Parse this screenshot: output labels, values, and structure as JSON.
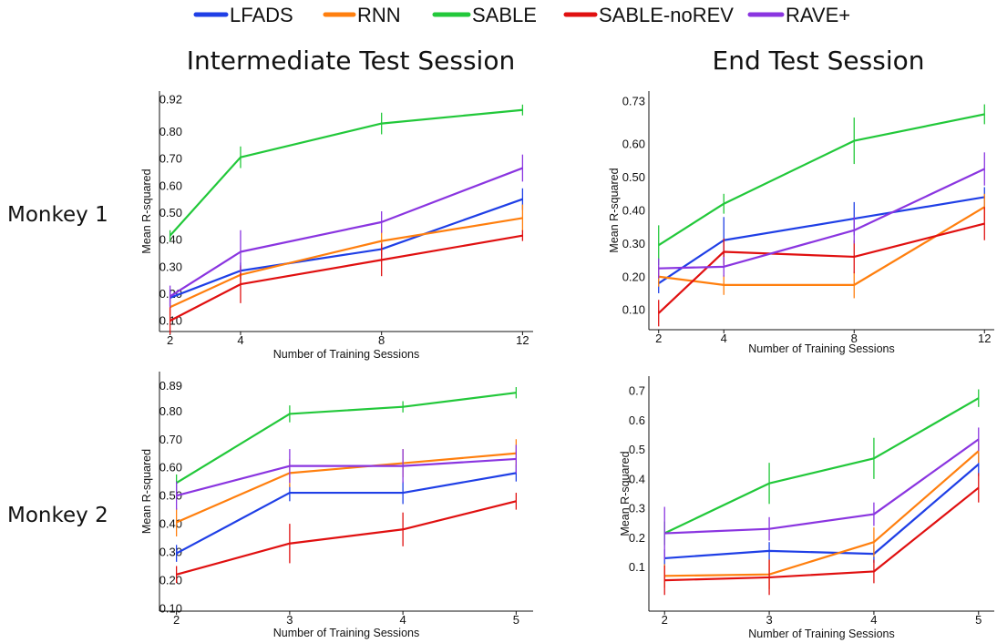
{
  "legend": [
    {
      "name": "LFADS",
      "color": "#1F3FE6"
    },
    {
      "name": "RNN",
      "color": "#FF7F0E"
    },
    {
      "name": "SABLE",
      "color": "#22C83A"
    },
    {
      "name": "SABLE-noREV",
      "color": "#E01010"
    },
    {
      "name": "RAVE+",
      "color": "#8A35E0"
    }
  ],
  "column_titles": [
    "Intermediate Test Session",
    "End Test Session"
  ],
  "row_labels": [
    "Monkey 1",
    "Monkey 2"
  ],
  "chart_data": [
    {
      "type": "line",
      "title": "Intermediate Test Session",
      "row": "Monkey 1",
      "xlabel": "Number of Training Sessions",
      "ylabel": "Mean R-squared",
      "x": [
        2,
        4,
        8,
        12
      ],
      "xlim": [
        1.7,
        12.3
      ],
      "ylim": [
        0.06,
        0.95
      ],
      "yticks": [
        0.1,
        0.2,
        0.3,
        0.4,
        0.5,
        0.6,
        0.7,
        0.8,
        0.92
      ],
      "ytick_labels": [
        "0.10",
        "0.20",
        "0.30",
        "0.40",
        "0.50",
        "0.60",
        "0.70",
        "0.80",
        "0.92"
      ],
      "grid": false,
      "series": [
        {
          "name": "LFADS",
          "values": [
            0.185,
            0.285,
            0.365,
            0.55
          ],
          "err": [
            0.03,
            0.03,
            0.03,
            0.04
          ]
        },
        {
          "name": "RNN",
          "values": [
            0.15,
            0.27,
            0.395,
            0.48
          ],
          "err": [
            0.03,
            0.03,
            0.04,
            0.05
          ]
        },
        {
          "name": "SABLE",
          "values": [
            0.415,
            0.705,
            0.83,
            0.88
          ],
          "err": [
            0.02,
            0.04,
            0.04,
            0.02
          ]
        },
        {
          "name": "SABLE-noREV",
          "values": [
            0.1,
            0.235,
            0.325,
            0.415
          ],
          "err": [
            0.05,
            0.07,
            0.06,
            0.02
          ]
        },
        {
          "name": "RAVE+",
          "values": [
            0.19,
            0.355,
            0.465,
            0.665
          ],
          "err": [
            0.04,
            0.08,
            0.04,
            0.05
          ]
        }
      ]
    },
    {
      "type": "line",
      "title": "End Test Session",
      "row": "Monkey 1",
      "xlabel": "Number of Training Sessions",
      "ylabel": "Mean R-squared",
      "x": [
        2,
        4,
        8,
        12
      ],
      "xlim": [
        1.7,
        12.3
      ],
      "ylim": [
        0.04,
        0.76
      ],
      "yticks": [
        0.1,
        0.2,
        0.3,
        0.4,
        0.5,
        0.6,
        0.73
      ],
      "ytick_labels": [
        "0.10",
        "0.20",
        "0.30",
        "0.40",
        "0.50",
        "0.60",
        "0.73"
      ],
      "grid": false,
      "series": [
        {
          "name": "LFADS",
          "values": [
            0.18,
            0.31,
            0.375,
            0.44
          ],
          "err": [
            0.03,
            0.07,
            0.05,
            0.03
          ]
        },
        {
          "name": "RNN",
          "values": [
            0.2,
            0.175,
            0.175,
            0.41
          ],
          "err": [
            0.03,
            0.03,
            0.04,
            0.04
          ]
        },
        {
          "name": "SABLE",
          "values": [
            0.295,
            0.42,
            0.61,
            0.69
          ],
          "err": [
            0.06,
            0.03,
            0.07,
            0.03
          ]
        },
        {
          "name": "SABLE-noREV",
          "values": [
            0.09,
            0.275,
            0.26,
            0.36
          ],
          "err": [
            0.04,
            0.04,
            0.05,
            0.05
          ]
        },
        {
          "name": "RAVE+",
          "values": [
            0.225,
            0.23,
            0.34,
            0.525
          ],
          "err": [
            0.03,
            0.03,
            0.04,
            0.05
          ]
        }
      ]
    },
    {
      "type": "line",
      "title": "Intermediate Test Session",
      "row": "Monkey 2",
      "xlabel": "Number of Training Sessions",
      "ylabel": "Mean R-squared",
      "x": [
        2,
        3,
        4,
        5
      ],
      "xlim": [
        1.85,
        5.15
      ],
      "ylim": [
        0.09,
        0.94
      ],
      "yticks": [
        0.1,
        0.2,
        0.3,
        0.4,
        0.5,
        0.6,
        0.7,
        0.8,
        0.89
      ],
      "ytick_labels": [
        "0.10",
        "0.20",
        "0.30",
        "0.40",
        "0.50",
        "0.60",
        "0.70",
        "0.80",
        "0.89"
      ],
      "grid": false,
      "series": [
        {
          "name": "LFADS",
          "values": [
            0.295,
            0.51,
            0.51,
            0.58
          ],
          "err": [
            0.03,
            0.03,
            0.04,
            0.03
          ]
        },
        {
          "name": "RNN",
          "values": [
            0.405,
            0.58,
            0.615,
            0.65
          ],
          "err": [
            0.05,
            0.05,
            0.05,
            0.05
          ]
        },
        {
          "name": "SABLE",
          "values": [
            0.545,
            0.79,
            0.815,
            0.865
          ],
          "err": [
            0.03,
            0.03,
            0.02,
            0.02
          ]
        },
        {
          "name": "SABLE-noREV",
          "values": [
            0.22,
            0.33,
            0.38,
            0.48
          ],
          "err": [
            0.03,
            0.07,
            0.06,
            0.03
          ]
        },
        {
          "name": "RAVE+",
          "values": [
            0.5,
            0.605,
            0.605,
            0.63
          ],
          "err": [
            0.05,
            0.06,
            0.06,
            0.05
          ]
        }
      ]
    },
    {
      "type": "line",
      "title": "End Test Session",
      "row": "Monkey 2",
      "xlabel": "Number of Training Sessions",
      "ylabel": "Mean R-squared",
      "x": [
        2,
        3,
        4,
        5
      ],
      "xlim": [
        1.85,
        5.15
      ],
      "ylim": [
        -0.05,
        0.75
      ],
      "yticks": [
        0.1,
        0.2,
        0.3,
        0.4,
        0.5,
        0.6,
        0.7
      ],
      "ytick_labels": [
        "0.1",
        "0.2",
        "0.3",
        "0.4",
        "0.5",
        "0.6",
        "0.7"
      ],
      "grid": false,
      "series": [
        {
          "name": "LFADS",
          "values": [
            0.13,
            0.155,
            0.145,
            0.45
          ],
          "err": [
            0.03,
            0.03,
            0.03,
            0.04
          ]
        },
        {
          "name": "RNN",
          "values": [
            0.07,
            0.075,
            0.185,
            0.495
          ],
          "err": [
            0.04,
            0.05,
            0.05,
            0.04
          ]
        },
        {
          "name": "SABLE",
          "values": [
            0.215,
            0.385,
            0.47,
            0.675
          ],
          "err": [
            0.04,
            0.07,
            0.07,
            0.03
          ]
        },
        {
          "name": "SABLE-noREV",
          "values": [
            0.055,
            0.065,
            0.085,
            0.37
          ],
          "err": [
            0.05,
            0.06,
            0.04,
            0.05
          ]
        },
        {
          "name": "RAVE+",
          "values": [
            0.215,
            0.23,
            0.28,
            0.535
          ],
          "err": [
            0.09,
            0.04,
            0.04,
            0.04
          ]
        }
      ]
    }
  ]
}
